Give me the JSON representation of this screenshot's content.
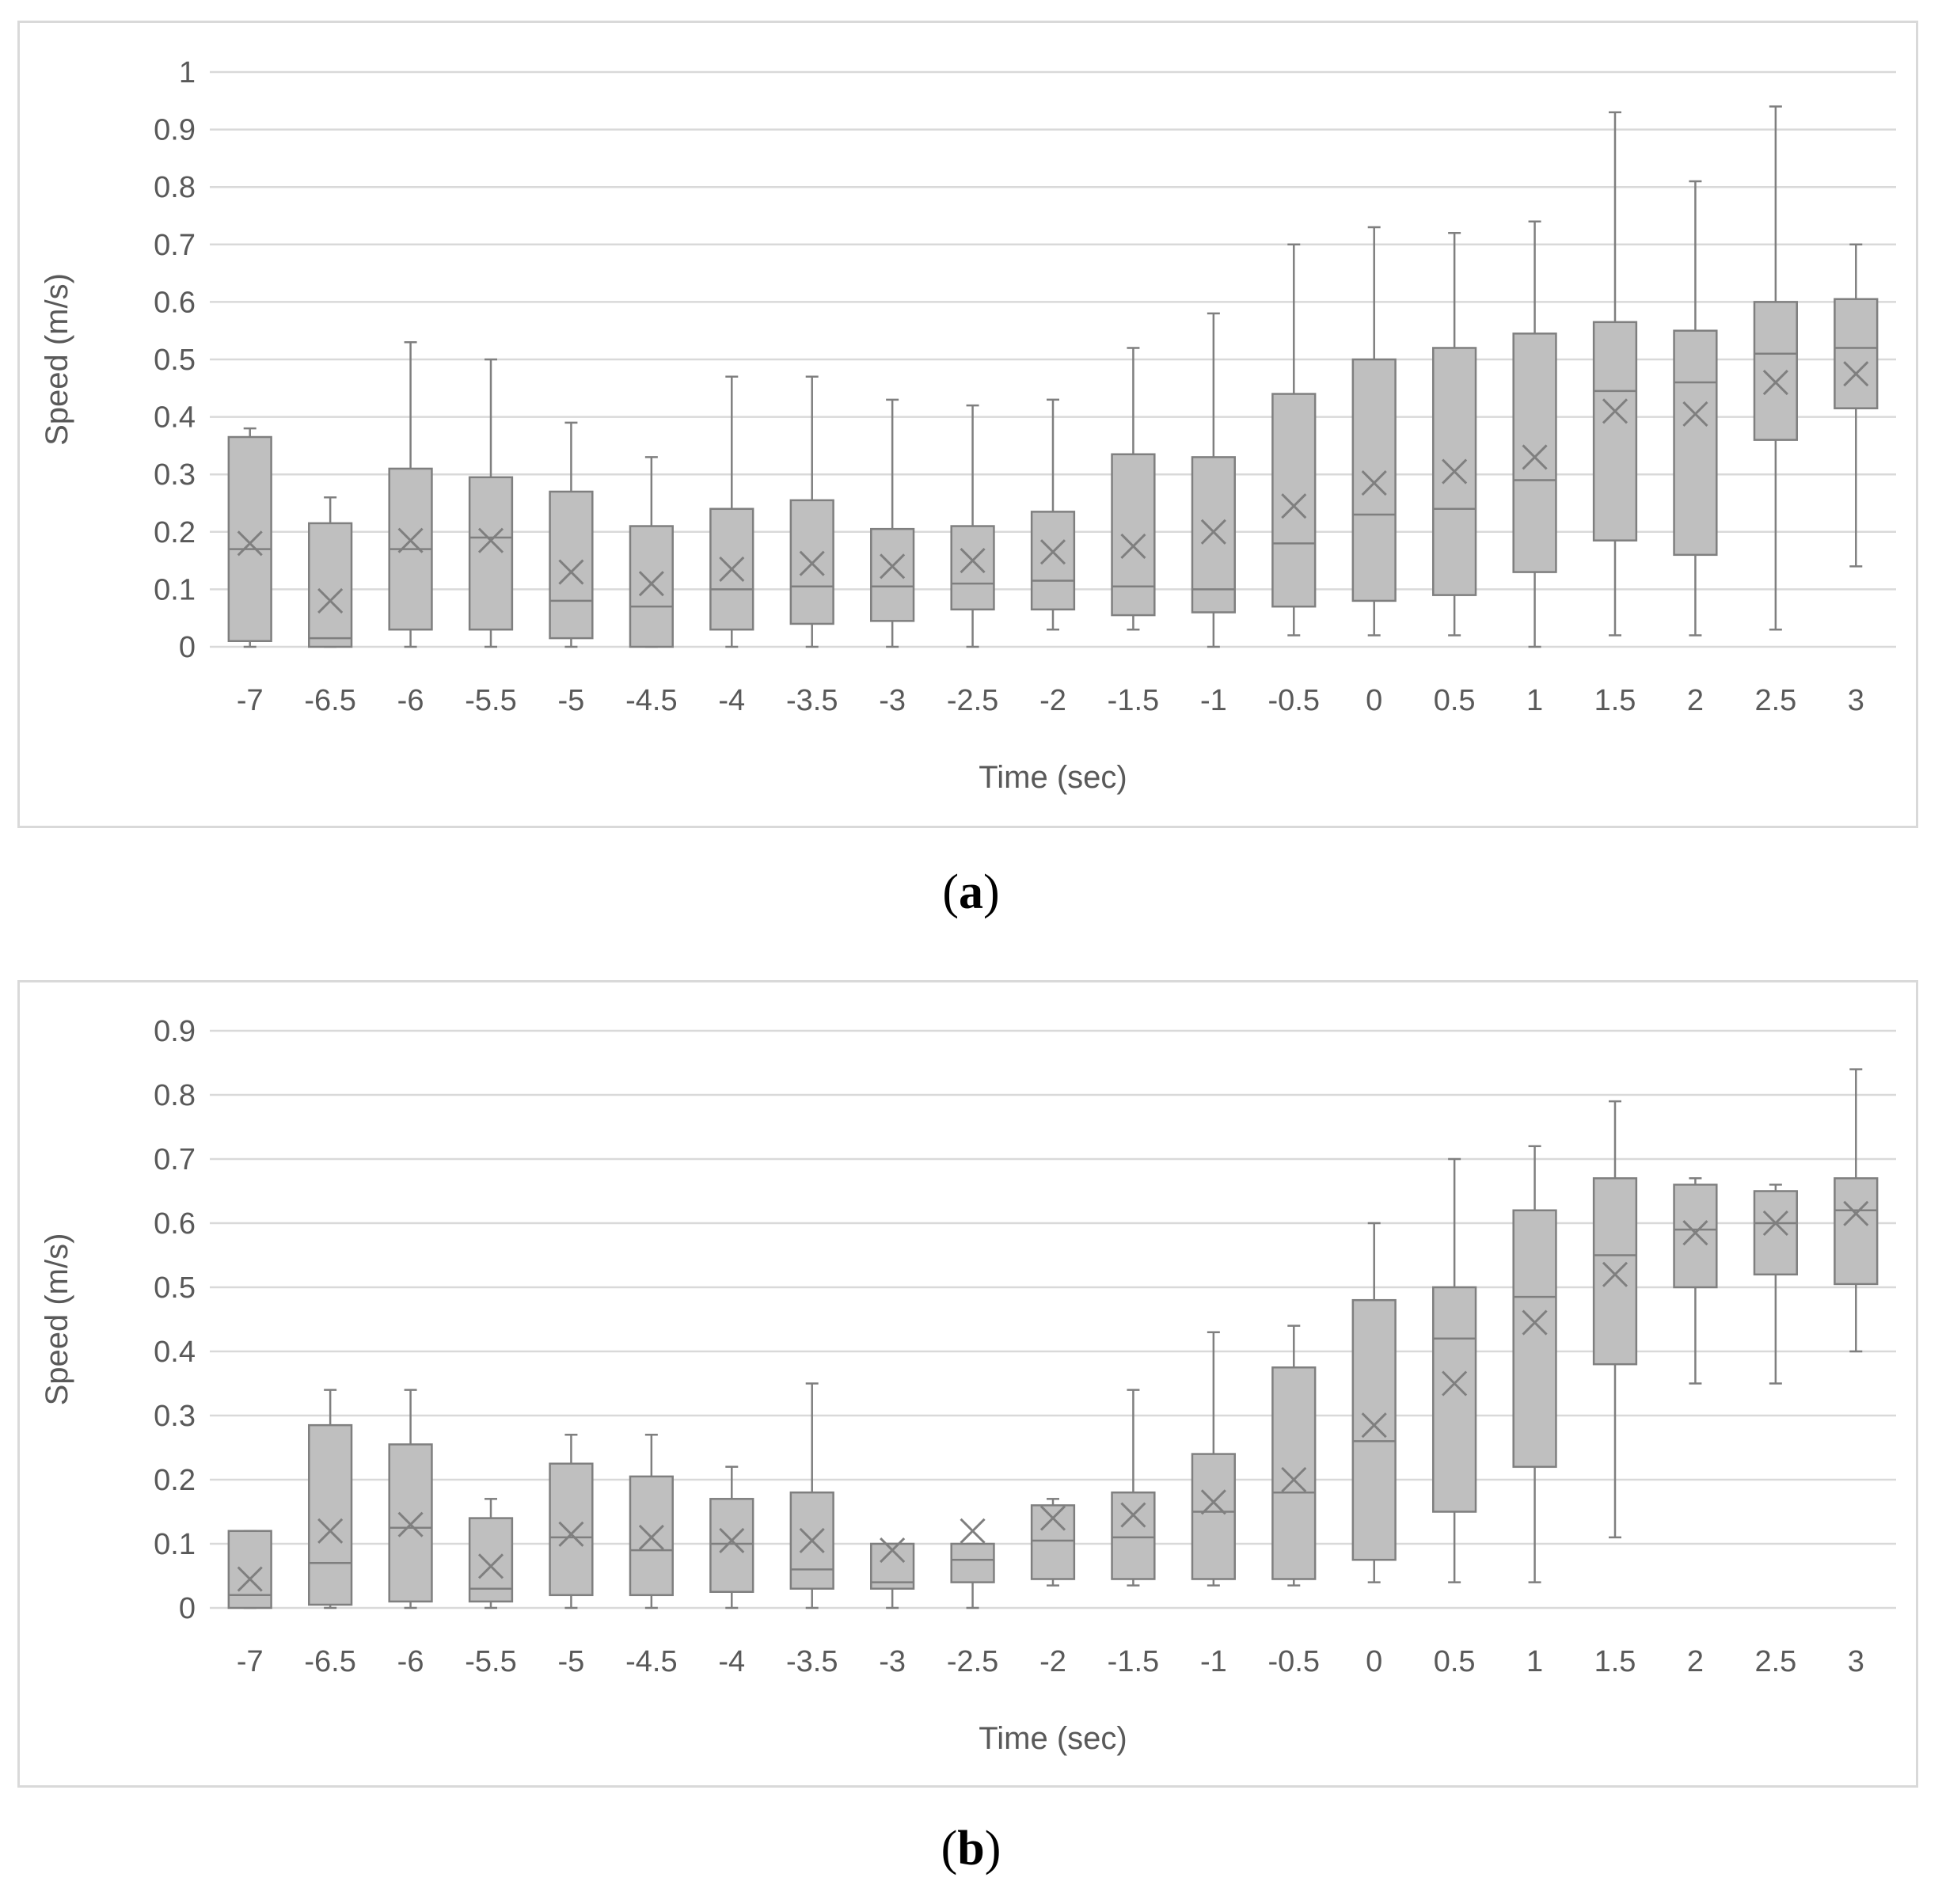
{
  "captions": [
    "a",
    "b"
  ],
  "chart_data": [
    {
      "type": "box",
      "id": "a",
      "xlabel": "Time (sec)",
      "ylabel": "Speed (m/s)",
      "ylim": [
        0,
        1
      ],
      "yticks": [
        "0",
        "0.1",
        "0.2",
        "0.3",
        "0.4",
        "0.5",
        "0.6",
        "0.7",
        "0.8",
        "0.9",
        "1"
      ],
      "grid": "horizontal",
      "colors": {
        "box_fill": "#bfbfbf",
        "box_stroke": "#7f7f7f",
        "grid": "#d9d9d9",
        "text": "#595959"
      },
      "categories": [
        "-7",
        "-6.5",
        "-6",
        "-5.5",
        "-5",
        "-4.5",
        "-4",
        "-3.5",
        "-3",
        "-2.5",
        "-2",
        "-1.5",
        "-1",
        "-0.5",
        "0",
        "0.5",
        "1",
        "1.5",
        "2",
        "2.5",
        "3"
      ],
      "boxes": [
        {
          "min": 0.0,
          "q1": 0.01,
          "median": 0.17,
          "q3": 0.365,
          "max": 0.38,
          "mean": 0.18
        },
        {
          "min": 0.0,
          "q1": 0.0,
          "median": 0.015,
          "q3": 0.215,
          "max": 0.26,
          "mean": 0.08
        },
        {
          "min": 0.0,
          "q1": 0.03,
          "median": 0.17,
          "q3": 0.31,
          "max": 0.53,
          "mean": 0.185
        },
        {
          "min": 0.0,
          "q1": 0.03,
          "median": 0.19,
          "q3": 0.295,
          "max": 0.5,
          "mean": 0.185
        },
        {
          "min": 0.0,
          "q1": 0.015,
          "median": 0.08,
          "q3": 0.27,
          "max": 0.39,
          "mean": 0.13
        },
        {
          "min": 0.0,
          "q1": 0.0,
          "median": 0.07,
          "q3": 0.21,
          "max": 0.33,
          "mean": 0.11
        },
        {
          "min": 0.0,
          "q1": 0.03,
          "median": 0.1,
          "q3": 0.24,
          "max": 0.47,
          "mean": 0.135
        },
        {
          "min": 0.0,
          "q1": 0.04,
          "median": 0.105,
          "q3": 0.255,
          "max": 0.47,
          "mean": 0.145
        },
        {
          "min": 0.0,
          "q1": 0.045,
          "median": 0.105,
          "q3": 0.205,
          "max": 0.43,
          "mean": 0.14
        },
        {
          "min": 0.0,
          "q1": 0.065,
          "median": 0.11,
          "q3": 0.21,
          "max": 0.42,
          "mean": 0.15
        },
        {
          "min": 0.03,
          "q1": 0.065,
          "median": 0.115,
          "q3": 0.235,
          "max": 0.43,
          "mean": 0.165
        },
        {
          "min": 0.03,
          "q1": 0.055,
          "median": 0.105,
          "q3": 0.335,
          "max": 0.52,
          "mean": 0.175
        },
        {
          "min": 0.0,
          "q1": 0.06,
          "median": 0.1,
          "q3": 0.33,
          "max": 0.58,
          "mean": 0.2
        },
        {
          "min": 0.02,
          "q1": 0.07,
          "median": 0.18,
          "q3": 0.44,
          "max": 0.7,
          "mean": 0.245
        },
        {
          "min": 0.02,
          "q1": 0.08,
          "median": 0.23,
          "q3": 0.5,
          "max": 0.73,
          "mean": 0.285
        },
        {
          "min": 0.02,
          "q1": 0.09,
          "median": 0.24,
          "q3": 0.52,
          "max": 0.72,
          "mean": 0.305
        },
        {
          "min": 0.0,
          "q1": 0.13,
          "median": 0.29,
          "q3": 0.545,
          "max": 0.74,
          "mean": 0.33
        },
        {
          "min": 0.02,
          "q1": 0.185,
          "median": 0.445,
          "q3": 0.565,
          "max": 0.93,
          "mean": 0.41
        },
        {
          "min": 0.02,
          "q1": 0.16,
          "median": 0.46,
          "q3": 0.55,
          "max": 0.81,
          "mean": 0.405
        },
        {
          "min": 0.03,
          "q1": 0.36,
          "median": 0.51,
          "q3": 0.6,
          "max": 0.94,
          "mean": 0.46
        },
        {
          "min": 0.14,
          "q1": 0.415,
          "median": 0.52,
          "q3": 0.605,
          "max": 0.7,
          "mean": 0.475
        }
      ]
    },
    {
      "type": "box",
      "id": "b",
      "xlabel": "Time (sec)",
      "ylabel": "Speed (m/s)",
      "ylim": [
        0,
        0.9
      ],
      "yticks": [
        "0",
        "0.1",
        "0.2",
        "0.3",
        "0.4",
        "0.5",
        "0.6",
        "0.7",
        "0.8",
        "0.9"
      ],
      "grid": "horizontal",
      "colors": {
        "box_fill": "#bfbfbf",
        "box_stroke": "#7f7f7f",
        "grid": "#d9d9d9",
        "text": "#595959"
      },
      "categories": [
        "-7",
        "-6.5",
        "-6",
        "-5.5",
        "-5",
        "-4.5",
        "-4",
        "-3.5",
        "-3",
        "-2.5",
        "-2",
        "-1.5",
        "-1",
        "-0.5",
        "0",
        "0.5",
        "1",
        "1.5",
        "2",
        "2.5",
        "3"
      ],
      "boxes": [
        {
          "min": 0.0,
          "q1": 0.0,
          "median": 0.02,
          "q3": 0.12,
          "max": 0.12,
          "mean": 0.045
        },
        {
          "min": 0.0,
          "q1": 0.005,
          "median": 0.07,
          "q3": 0.285,
          "max": 0.34,
          "mean": 0.12
        },
        {
          "min": 0.0,
          "q1": 0.01,
          "median": 0.125,
          "q3": 0.255,
          "max": 0.34,
          "mean": 0.13
        },
        {
          "min": 0.0,
          "q1": 0.01,
          "median": 0.03,
          "q3": 0.14,
          "max": 0.17,
          "mean": 0.065
        },
        {
          "min": 0.0,
          "q1": 0.02,
          "median": 0.11,
          "q3": 0.225,
          "max": 0.27,
          "mean": 0.115
        },
        {
          "min": 0.0,
          "q1": 0.02,
          "median": 0.09,
          "q3": 0.205,
          "max": 0.27,
          "mean": 0.11
        },
        {
          "min": 0.0,
          "q1": 0.025,
          "median": 0.1,
          "q3": 0.17,
          "max": 0.22,
          "mean": 0.105
        },
        {
          "min": 0.0,
          "q1": 0.03,
          "median": 0.06,
          "q3": 0.18,
          "max": 0.35,
          "mean": 0.105
        },
        {
          "min": 0.0,
          "q1": 0.03,
          "median": 0.04,
          "q3": 0.1,
          "max": 0.1,
          "mean": 0.09
        },
        {
          "min": 0.0,
          "q1": 0.04,
          "median": 0.075,
          "q3": 0.1,
          "max": 0.1,
          "mean": 0.12
        },
        {
          "min": 0.035,
          "q1": 0.045,
          "median": 0.105,
          "q3": 0.16,
          "max": 0.17,
          "mean": 0.14
        },
        {
          "min": 0.035,
          "q1": 0.045,
          "median": 0.11,
          "q3": 0.18,
          "max": 0.34,
          "mean": 0.145
        },
        {
          "min": 0.035,
          "q1": 0.045,
          "median": 0.15,
          "q3": 0.24,
          "max": 0.43,
          "mean": 0.165
        },
        {
          "min": 0.035,
          "q1": 0.045,
          "median": 0.18,
          "q3": 0.375,
          "max": 0.44,
          "mean": 0.2
        },
        {
          "min": 0.04,
          "q1": 0.075,
          "median": 0.26,
          "q3": 0.48,
          "max": 0.6,
          "mean": 0.285
        },
        {
          "min": 0.04,
          "q1": 0.15,
          "median": 0.42,
          "q3": 0.5,
          "max": 0.7,
          "mean": 0.35
        },
        {
          "min": 0.04,
          "q1": 0.22,
          "median": 0.485,
          "q3": 0.62,
          "max": 0.72,
          "mean": 0.445
        },
        {
          "min": 0.11,
          "q1": 0.38,
          "median": 0.55,
          "q3": 0.67,
          "max": 0.79,
          "mean": 0.52
        },
        {
          "min": 0.35,
          "q1": 0.5,
          "median": 0.59,
          "q3": 0.66,
          "max": 0.67,
          "mean": 0.585
        },
        {
          "min": 0.35,
          "q1": 0.52,
          "median": 0.6,
          "q3": 0.65,
          "max": 0.66,
          "mean": 0.6
        },
        {
          "min": 0.4,
          "q1": 0.505,
          "median": 0.62,
          "q3": 0.67,
          "max": 0.84,
          "mean": 0.615
        }
      ]
    }
  ]
}
